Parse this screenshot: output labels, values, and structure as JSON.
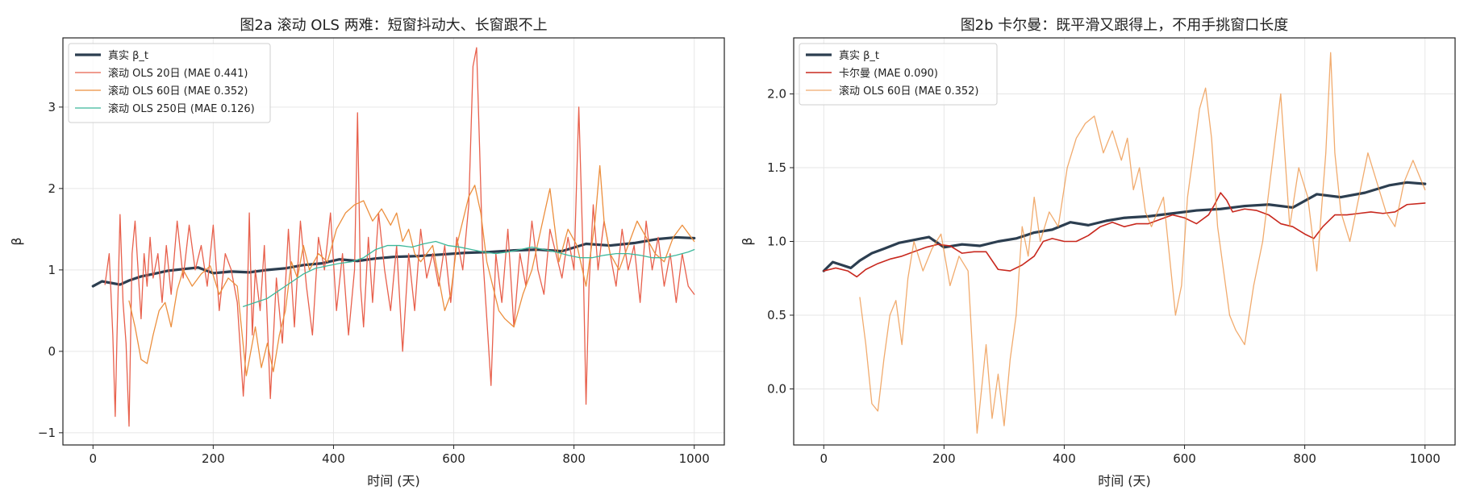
{
  "chart_data": [
    {
      "type": "line",
      "title": "图2a  滚动 OLS 两难：短窗抖动大、长窗跟不上",
      "xlabel": "时间 (天)",
      "ylabel": "β",
      "xlim": [
        -50,
        1050
      ],
      "ylim": [
        -1.15,
        3.85
      ],
      "xticks": [
        0,
        200,
        400,
        600,
        800,
        1000
      ],
      "yticks": [
        -1,
        0,
        1,
        2,
        3
      ],
      "xtick_labels": [
        "0",
        "200",
        "400",
        "600",
        "800",
        "1000"
      ],
      "ytick_labels": [
        "−1",
        "0",
        "1",
        "2",
        "3"
      ],
      "grid": true,
      "legend_position": "top-left",
      "series": [
        {
          "name": "真实 β_t",
          "color": "#2c3e50",
          "width": 3.2,
          "x": [
            0,
            15,
            30,
            45,
            60,
            80,
            100,
            125,
            150,
            175,
            200,
            230,
            260,
            290,
            320,
            350,
            380,
            410,
            440,
            470,
            500,
            540,
            580,
            620,
            660,
            700,
            740,
            780,
            820,
            860,
            900,
            940,
            970,
            1000
          ],
          "y": [
            0.8,
            0.86,
            0.84,
            0.82,
            0.87,
            0.92,
            0.95,
            0.99,
            1.01,
            1.03,
            0.96,
            0.98,
            0.97,
            1.0,
            1.02,
            1.06,
            1.08,
            1.13,
            1.11,
            1.14,
            1.16,
            1.17,
            1.19,
            1.21,
            1.22,
            1.24,
            1.25,
            1.23,
            1.32,
            1.3,
            1.33,
            1.38,
            1.4,
            1.39
          ]
        },
        {
          "name": "滚动 OLS 20日 (MAE 0.441)",
          "color": "#e8604c",
          "width": 1.3,
          "x": [
            20,
            27,
            33,
            37,
            40,
            45,
            50,
            55,
            60,
            65,
            70,
            75,
            80,
            85,
            90,
            95,
            100,
            108,
            115,
            122,
            130,
            140,
            150,
            160,
            170,
            180,
            190,
            200,
            210,
            220,
            230,
            240,
            250,
            255,
            260,
            265,
            270,
            278,
            285,
            295,
            305,
            315,
            325,
            335,
            345,
            355,
            365,
            375,
            385,
            395,
            405,
            415,
            425,
            435,
            440,
            445,
            450,
            458,
            465,
            475,
            485,
            495,
            505,
            515,
            525,
            535,
            545,
            555,
            565,
            575,
            585,
            595,
            605,
            615,
            625,
            632,
            638,
            643,
            648,
            655,
            662,
            670,
            680,
            690,
            700,
            710,
            720,
            730,
            740,
            750,
            760,
            770,
            780,
            790,
            800,
            808,
            815,
            820,
            825,
            832,
            840,
            850,
            860,
            870,
            880,
            890,
            900,
            910,
            920,
            930,
            940,
            950,
            960,
            970,
            980,
            990,
            1000
          ],
          "y": [
            0.82,
            1.2,
            0.2,
            -0.8,
            0.2,
            1.68,
            0.6,
            0.1,
            -0.92,
            1.2,
            1.6,
            1.0,
            0.4,
            1.2,
            0.8,
            1.4,
            0.9,
            1.2,
            0.6,
            1.3,
            0.7,
            1.6,
            0.9,
            1.55,
            1.0,
            1.3,
            0.8,
            1.55,
            0.5,
            1.2,
            1.0,
            0.6,
            -0.55,
            0.1,
            1.7,
            0.2,
            1.0,
            0.5,
            1.3,
            -0.58,
            0.9,
            0.1,
            1.5,
            0.3,
            1.6,
            0.8,
            0.2,
            1.4,
            1.0,
            1.7,
            0.5,
            1.2,
            0.2,
            1.0,
            2.93,
            0.8,
            0.3,
            1.4,
            0.6,
            1.7,
            1.0,
            0.5,
            1.3,
            0.0,
            1.2,
            0.5,
            1.5,
            0.9,
            1.2,
            0.8,
            1.3,
            0.6,
            1.4,
            1.0,
            1.8,
            3.5,
            3.73,
            2.5,
            1.2,
            0.4,
            -0.42,
            1.2,
            0.6,
            1.5,
            0.3,
            1.2,
            0.8,
            1.6,
            1.0,
            0.7,
            1.5,
            1.2,
            0.9,
            1.4,
            1.0,
            3.0,
            1.2,
            -0.65,
            0.8,
            1.8,
            1.0,
            1.6,
            1.2,
            0.8,
            1.5,
            1.0,
            1.3,
            0.6,
            1.6,
            1.0,
            1.4,
            0.8,
            1.2,
            0.6,
            1.2,
            0.8,
            0.7
          ]
        },
        {
          "name": "滚动 OLS 60日 (MAE 0.352)",
          "color": "#ec8f3e",
          "width": 1.3,
          "x": [
            60,
            70,
            80,
            90,
            100,
            110,
            120,
            130,
            140,
            150,
            165,
            180,
            195,
            210,
            225,
            240,
            255,
            270,
            280,
            290,
            300,
            310,
            320,
            330,
            340,
            350,
            360,
            375,
            390,
            405,
            420,
            435,
            450,
            465,
            480,
            495,
            505,
            515,
            525,
            535,
            545,
            555,
            565,
            575,
            585,
            595,
            605,
            615,
            625,
            635,
            645,
            655,
            665,
            675,
            685,
            700,
            715,
            730,
            745,
            760,
            775,
            790,
            805,
            820,
            835,
            843,
            850,
            860,
            875,
            890,
            905,
            920,
            935,
            950,
            965,
            980,
            1000
          ],
          "y": [
            0.62,
            0.3,
            -0.1,
            -0.15,
            0.2,
            0.5,
            0.6,
            0.3,
            0.75,
            1.0,
            0.8,
            0.95,
            1.05,
            0.7,
            0.9,
            0.8,
            -0.3,
            0.3,
            -0.2,
            0.1,
            -0.25,
            0.2,
            0.5,
            1.1,
            0.9,
            1.3,
            1.0,
            1.2,
            1.1,
            1.5,
            1.7,
            1.8,
            1.85,
            1.6,
            1.75,
            1.55,
            1.7,
            1.35,
            1.5,
            1.2,
            1.1,
            1.2,
            1.3,
            0.9,
            0.5,
            0.7,
            1.3,
            1.6,
            1.9,
            2.04,
            1.7,
            1.1,
            0.8,
            0.5,
            0.4,
            0.3,
            0.7,
            1.0,
            1.5,
            2.0,
            1.1,
            1.5,
            1.3,
            0.8,
            1.6,
            2.28,
            1.6,
            1.2,
            1.0,
            1.3,
            1.6,
            1.4,
            1.2,
            1.1,
            1.4,
            1.55,
            1.35
          ]
        },
        {
          "name": "滚动 OLS 250日 (MAE 0.126)",
          "color": "#3db89b",
          "width": 1.3,
          "x": [
            250,
            270,
            290,
            310,
            330,
            350,
            370,
            390,
            410,
            430,
            450,
            470,
            490,
            510,
            530,
            550,
            570,
            590,
            610,
            630,
            650,
            670,
            690,
            710,
            730,
            750,
            770,
            790,
            810,
            830,
            850,
            870,
            890,
            910,
            930,
            950,
            970,
            990,
            1000
          ],
          "y": [
            0.55,
            0.6,
            0.65,
            0.75,
            0.85,
            0.95,
            1.02,
            1.05,
            1.08,
            1.1,
            1.15,
            1.25,
            1.3,
            1.3,
            1.28,
            1.32,
            1.35,
            1.3,
            1.28,
            1.25,
            1.22,
            1.2,
            1.22,
            1.25,
            1.28,
            1.25,
            1.22,
            1.18,
            1.15,
            1.15,
            1.18,
            1.2,
            1.2,
            1.18,
            1.15,
            1.15,
            1.18,
            1.22,
            1.25
          ]
        }
      ]
    },
    {
      "type": "line",
      "title": "图2b  卡尔曼：既平滑又跟得上，不用手挑窗口长度",
      "xlabel": "时间 (天)",
      "ylabel": "β",
      "xlim": [
        -50,
        1050
      ],
      "ylim": [
        -0.38,
        2.38
      ],
      "xticks": [
        0,
        200,
        400,
        600,
        800,
        1000
      ],
      "yticks": [
        0.0,
        0.5,
        1.0,
        1.5,
        2.0
      ],
      "xtick_labels": [
        "0",
        "200",
        "400",
        "600",
        "800",
        "1000"
      ],
      "ytick_labels": [
        "0.0",
        "0.5",
        "1.0",
        "1.5",
        "2.0"
      ],
      "grid": true,
      "legend_position": "top-left",
      "series": [
        {
          "name": "真实 β_t",
          "color": "#2c3e50",
          "width": 3.2,
          "x": [
            0,
            15,
            30,
            45,
            60,
            80,
            100,
            125,
            150,
            175,
            200,
            230,
            260,
            290,
            320,
            350,
            380,
            410,
            440,
            470,
            500,
            540,
            580,
            620,
            660,
            700,
            740,
            780,
            820,
            860,
            900,
            940,
            970,
            1000
          ],
          "y": [
            0.8,
            0.86,
            0.84,
            0.82,
            0.87,
            0.92,
            0.95,
            0.99,
            1.01,
            1.03,
            0.96,
            0.98,
            0.97,
            1.0,
            1.02,
            1.06,
            1.08,
            1.13,
            1.11,
            1.14,
            1.16,
            1.17,
            1.19,
            1.21,
            1.22,
            1.24,
            1.25,
            1.23,
            1.32,
            1.3,
            1.33,
            1.38,
            1.4,
            1.39
          ]
        },
        {
          "name": "卡尔曼 (MAE 0.090)",
          "color": "#c8281e",
          "width": 1.6,
          "x": [
            0,
            20,
            40,
            55,
            70,
            90,
            110,
            130,
            150,
            170,
            190,
            210,
            230,
            250,
            270,
            290,
            310,
            330,
            350,
            365,
            380,
            400,
            420,
            440,
            460,
            480,
            500,
            520,
            540,
            560,
            580,
            600,
            620,
            640,
            650,
            660,
            670,
            680,
            700,
            720,
            740,
            760,
            780,
            800,
            815,
            830,
            850,
            870,
            890,
            910,
            930,
            950,
            970,
            1000
          ],
          "y": [
            0.8,
            0.82,
            0.8,
            0.76,
            0.81,
            0.85,
            0.88,
            0.9,
            0.93,
            0.96,
            0.98,
            0.97,
            0.92,
            0.93,
            0.93,
            0.81,
            0.8,
            0.84,
            0.9,
            1.0,
            1.02,
            1.0,
            1.0,
            1.04,
            1.1,
            1.13,
            1.1,
            1.12,
            1.12,
            1.15,
            1.18,
            1.16,
            1.12,
            1.18,
            1.25,
            1.33,
            1.28,
            1.2,
            1.22,
            1.21,
            1.18,
            1.12,
            1.1,
            1.05,
            1.02,
            1.1,
            1.18,
            1.18,
            1.19,
            1.2,
            1.19,
            1.2,
            1.25,
            1.26
          ]
        },
        {
          "name": "滚动 OLS 60日 (MAE 0.352)",
          "color": "#ec8f3e",
          "opacity": 0.75,
          "width": 1.3,
          "x": [
            60,
            70,
            80,
            90,
            100,
            110,
            120,
            130,
            140,
            150,
            165,
            180,
            195,
            210,
            225,
            240,
            255,
            270,
            280,
            290,
            300,
            310,
            320,
            330,
            340,
            350,
            360,
            375,
            390,
            405,
            420,
            435,
            450,
            465,
            480,
            495,
            505,
            515,
            525,
            535,
            545,
            555,
            565,
            575,
            585,
            595,
            605,
            615,
            625,
            635,
            645,
            655,
            665,
            675,
            685,
            700,
            715,
            730,
            745,
            760,
            775,
            790,
            805,
            820,
            835,
            843,
            850,
            860,
            875,
            890,
            905,
            920,
            935,
            950,
            965,
            980,
            1000
          ],
          "y": [
            0.62,
            0.3,
            -0.1,
            -0.15,
            0.2,
            0.5,
            0.6,
            0.3,
            0.75,
            1.0,
            0.8,
            0.95,
            1.05,
            0.7,
            0.9,
            0.8,
            -0.3,
            0.3,
            -0.2,
            0.1,
            -0.25,
            0.2,
            0.5,
            1.1,
            0.9,
            1.3,
            1.0,
            1.2,
            1.1,
            1.5,
            1.7,
            1.8,
            1.85,
            1.6,
            1.75,
            1.55,
            1.7,
            1.35,
            1.5,
            1.2,
            1.1,
            1.2,
            1.3,
            0.9,
            0.5,
            0.7,
            1.3,
            1.6,
            1.9,
            2.04,
            1.7,
            1.1,
            0.8,
            0.5,
            0.4,
            0.3,
            0.7,
            1.0,
            1.5,
            2.0,
            1.1,
            1.5,
            1.3,
            0.8,
            1.6,
            2.28,
            1.6,
            1.2,
            1.0,
            1.3,
            1.6,
            1.4,
            1.2,
            1.1,
            1.4,
            1.55,
            1.35
          ]
        }
      ]
    }
  ]
}
